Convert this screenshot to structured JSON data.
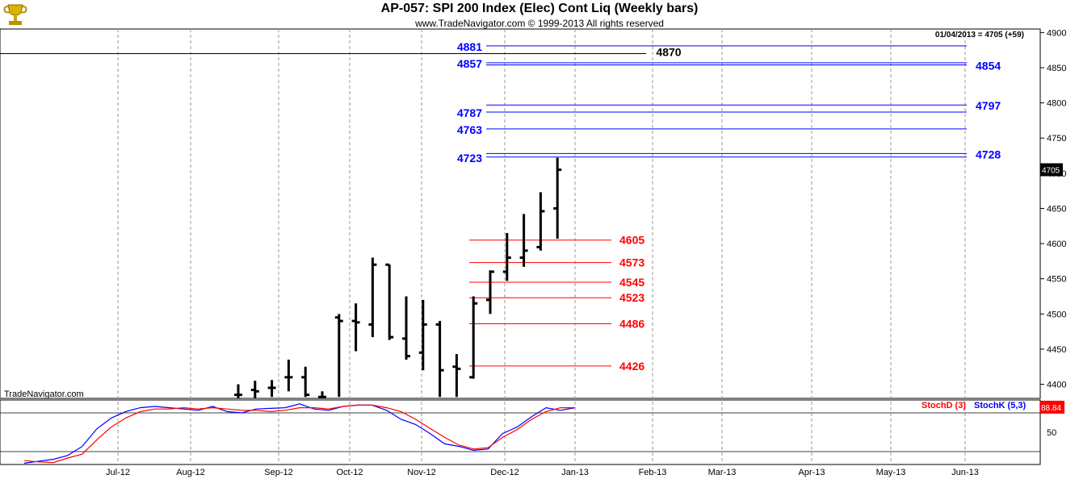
{
  "header": {
    "title": "AP-057:  SPI 200 Index (Elec) Cont Liq  (Weekly bars)",
    "subtitle": "www.TradeNavigator.com © 1999-2013 All rights reserved",
    "logo_icon": "trophy-logo-icon"
  },
  "watermark": "TradeNavigator.com",
  "chart_data": [
    {
      "type": "ohlc",
      "date_label": "01/04/2013 = 4705 (+59)",
      "last_price_label": "4705",
      "x_ticks": [
        "Jul-12",
        "Aug-12",
        "Sep-12",
        "Oct-12",
        "Nov-12",
        "Dec-12",
        "Jan-13",
        "Feb-13",
        "Mar-13",
        "Apr-13",
        "May-13",
        "Jun-13"
      ],
      "ylim": [
        4380,
        4905
      ],
      "y_ticks": [
        4400,
        4450,
        4500,
        4550,
        4600,
        4650,
        4700,
        4750,
        4800,
        4850,
        4900
      ],
      "y_tick_labels": [
        "4400",
        "4450",
        "4500",
        "4550",
        "4600",
        "4650",
        "4700",
        "4750",
        "4800",
        "4850",
        "4900"
      ],
      "bars": [
        {
          "o": 4385,
          "h": 4400,
          "l": 4380,
          "c": 4385
        },
        {
          "o": 4392,
          "h": 4405,
          "l": 4380,
          "c": 4390
        },
        {
          "o": 4395,
          "h": 4406,
          "l": 4382,
          "c": 4395
        },
        {
          "o": 4410,
          "h": 4435,
          "l": 4390,
          "c": 4410
        },
        {
          "o": 4410,
          "h": 4425,
          "l": 4382,
          "c": 4385
        },
        {
          "o": 4382,
          "h": 4390,
          "l": 4380,
          "c": 4382
        },
        {
          "o": 4495,
          "h": 4500,
          "l": 4382,
          "c": 4490
        },
        {
          "o": 4490,
          "h": 4515,
          "l": 4447,
          "c": 4488
        },
        {
          "o": 4485,
          "h": 4580,
          "l": 4467,
          "c": 4570
        },
        {
          "o": 4570,
          "h": 4570,
          "l": 4463,
          "c": 4467
        },
        {
          "o": 4465,
          "h": 4525,
          "l": 4435,
          "c": 4440
        },
        {
          "o": 4445,
          "h": 4520,
          "l": 4420,
          "c": 4485
        },
        {
          "o": 4485,
          "h": 4490,
          "l": 4382,
          "c": 4420
        },
        {
          "o": 4425,
          "h": 4443,
          "l": 4382,
          "c": 4422
        },
        {
          "o": 4410,
          "h": 4525,
          "l": 4408,
          "c": 4515
        },
        {
          "o": 4520,
          "h": 4562,
          "l": 4500,
          "c": 4560
        },
        {
          "o": 4560,
          "h": 4615,
          "l": 4547,
          "c": 4580
        },
        {
          "o": 4580,
          "h": 4642,
          "l": 4567,
          "c": 4590
        },
        {
          "o": 4595,
          "h": 4673,
          "l": 4590,
          "c": 4646
        },
        {
          "o": 4650,
          "h": 4722,
          "l": 4607,
          "c": 4705
        }
      ],
      "levels_resistance": [
        {
          "label_left": "4881",
          "value": 4881
        },
        {
          "label_left": "4857",
          "value": 4857
        },
        {
          "label_right": "4854",
          "value": 4854
        },
        {
          "label_right": "4797",
          "value": 4797
        },
        {
          "label_left": "4787",
          "value": 4787
        },
        {
          "label_left": "4763",
          "value": 4763
        },
        {
          "label_right": "4728",
          "value": 4728
        },
        {
          "label_left": "4723",
          "value": 4723
        }
      ],
      "level_black": {
        "label": "4870",
        "value": 4870
      },
      "levels_support": [
        {
          "label": "4605",
          "value": 4605
        },
        {
          "label": "4573",
          "value": 4573
        },
        {
          "label": "4545",
          "value": 4545
        },
        {
          "label": "4523",
          "value": 4523
        },
        {
          "label": "4486",
          "value": 4486
        },
        {
          "label": "4426",
          "value": 4426
        }
      ],
      "colors": {
        "bars": "#000000",
        "resistance": "#0000ff",
        "support": "#ff0000",
        "level_black": "#000000",
        "grid": "#999999"
      }
    },
    {
      "type": "line",
      "legend": [
        "StochD (3)",
        "StochK (5,3)"
      ],
      "y_ticks": [
        50
      ],
      "y_tick_labels": [
        "50"
      ],
      "ylim": [
        0,
        100
      ],
      "last_value_label": "88.84",
      "reference_lines": [
        20,
        80
      ],
      "series": [
        {
          "name": "StochK (5,3)",
          "color": "#0000ff",
          "values": [
            2,
            5,
            8,
            14,
            28,
            55,
            72,
            82,
            88,
            90,
            88,
            86,
            84,
            90,
            82,
            80,
            86,
            87,
            88,
            94,
            86,
            84,
            90,
            92,
            92,
            84,
            70,
            62,
            48,
            32,
            28,
            22,
            24,
            48,
            58,
            74,
            88,
            84,
            88
          ]
        },
        {
          "name": "StochD (3)",
          "color": "#ff0000",
          "values": [
            6,
            4,
            3,
            10,
            16,
            38,
            58,
            72,
            82,
            86,
            86,
            88,
            86,
            88,
            86,
            84,
            84,
            82,
            84,
            88,
            88,
            86,
            90,
            92,
            92,
            88,
            82,
            70,
            56,
            42,
            30,
            24,
            26,
            42,
            54,
            70,
            82,
            88,
            88
          ]
        }
      ]
    }
  ]
}
